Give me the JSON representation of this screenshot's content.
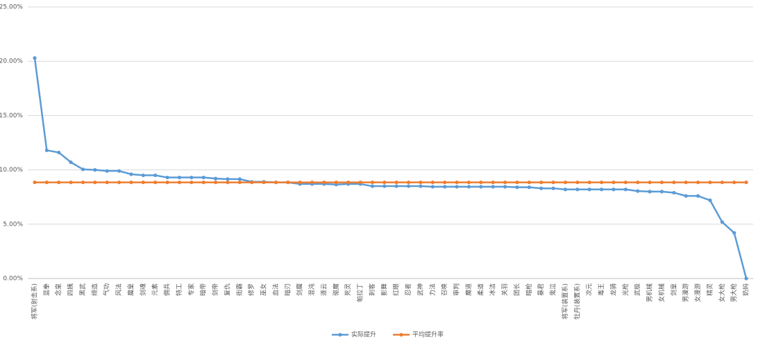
{
  "chart_data": {
    "type": "line",
    "categories": [
      "将军(射击系)",
      "蓝拳",
      "念皇",
      "四姨",
      "黑武",
      "缔造",
      "气功",
      "风法",
      "魔皇",
      "剑魂",
      "元素",
      "佣兵",
      "特工",
      "专家",
      "暗帝",
      "剑帝",
      "复仇",
      "街霸",
      "修罗",
      "巫女",
      "血法",
      "暗刃",
      "剑魔",
      "混沌",
      "逐云",
      "驱魔",
      "死灵",
      "帕拉丁",
      "刺客",
      "影舞",
      "红眼",
      "忍者",
      "武神",
      "力法",
      "召唤",
      "审判",
      "魔道",
      "柔道",
      "冰洁",
      "关羽",
      "团长",
      "暗枪",
      "暴君",
      "鬼泣",
      "将军(装置系)",
      "牡丹(装置系)",
      "次元",
      "毒王",
      "龙骑",
      "光枪",
      "武极",
      "男机械",
      "女机械",
      "剑皇",
      "男漫游",
      "女漫游",
      "精灵",
      "女大枪",
      "男大枪",
      "奶妈"
    ],
    "series": [
      {
        "name": "实际提升",
        "color": "#5b9bd5",
        "values": [
          20.3,
          11.8,
          11.6,
          10.7,
          10.05,
          10.0,
          9.9,
          9.9,
          9.6,
          9.5,
          9.5,
          9.3,
          9.3,
          9.3,
          9.3,
          9.2,
          9.15,
          9.15,
          8.9,
          8.9,
          8.85,
          8.85,
          8.7,
          8.7,
          8.7,
          8.65,
          8.7,
          8.7,
          8.5,
          8.5,
          8.5,
          8.5,
          8.5,
          8.45,
          8.45,
          8.45,
          8.45,
          8.45,
          8.45,
          8.45,
          8.4,
          8.4,
          8.3,
          8.3,
          8.2,
          8.2,
          8.2,
          8.2,
          8.2,
          8.2,
          8.05,
          8.0,
          8.0,
          7.9,
          7.6,
          7.6,
          7.2,
          5.2,
          4.2,
          0
        ]
      },
      {
        "name": "平均提升率",
        "color": "#ed7d31",
        "values": [
          8.85,
          8.85,
          8.85,
          8.85,
          8.85,
          8.85,
          8.85,
          8.85,
          8.85,
          8.85,
          8.85,
          8.85,
          8.85,
          8.85,
          8.85,
          8.85,
          8.85,
          8.85,
          8.85,
          8.85,
          8.85,
          8.85,
          8.85,
          8.85,
          8.85,
          8.85,
          8.85,
          8.85,
          8.85,
          8.85,
          8.85,
          8.85,
          8.85,
          8.85,
          8.85,
          8.85,
          8.85,
          8.85,
          8.85,
          8.85,
          8.85,
          8.85,
          8.85,
          8.85,
          8.85,
          8.85,
          8.85,
          8.85,
          8.85,
          8.85,
          8.85,
          8.85,
          8.85,
          8.85,
          8.85,
          8.85,
          8.85,
          8.85,
          8.85,
          8.85
        ]
      }
    ],
    "ylim": [
      0,
      25
    ],
    "yticks": [
      {
        "value": 0,
        "label": "0.00%"
      },
      {
        "value": 5,
        "label": "5.00%"
      },
      {
        "value": 10,
        "label": "10.00%"
      },
      {
        "value": 15,
        "label": "15.00%"
      },
      {
        "value": 20,
        "label": "20.00%"
      },
      {
        "value": 25,
        "label": "25.00%"
      }
    ],
    "grid": true,
    "legend": "bottom"
  }
}
